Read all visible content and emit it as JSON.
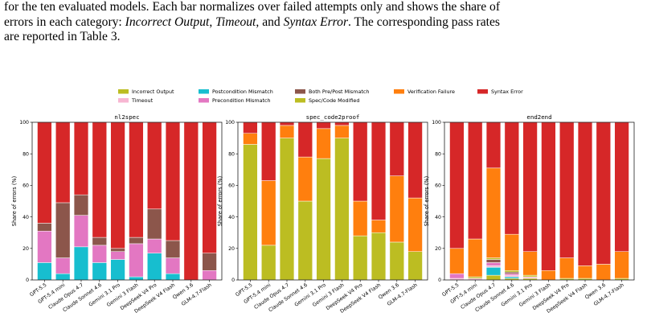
{
  "caption": {
    "line1": "for the ten evaluated models. Each bar normalizes over failed attempts only and shows the share of",
    "line2_pre": "errors in each category: ",
    "cat1": "Incorrect Output",
    "sep1": ", ",
    "cat2": "Timeout",
    "sep2": ", and ",
    "cat3": "Syntax Error",
    "line2_post": ". The corresponding pass rates",
    "line3": "are reported in Table 3."
  },
  "colors": {
    "incorrect_output": "#bcbd22",
    "timeout": "#f7b6d2",
    "postcondition_mismatch": "#17becf",
    "precondition_mismatch": "#e377c2",
    "both_mismatch": "#8c564b",
    "spec_code_modified": "#bcbd22",
    "verification_failure": "#ff7f0e",
    "syntax_error": "#d62728"
  },
  "legend": {
    "placement": "top-center",
    "entries": [
      {
        "key": "incorrect_output",
        "label": "Incorrect Output"
      },
      {
        "key": "postcondition_mismatch",
        "label": "Postcondition Mismatch"
      },
      {
        "key": "both_mismatch",
        "label": "Both Pre/Post Mismatch"
      },
      {
        "key": "verification_failure",
        "label": "Verification Failure"
      },
      {
        "key": "syntax_error",
        "label": "Syntax Error"
      },
      {
        "key": "timeout",
        "label": "Timeout"
      },
      {
        "key": "precondition_mismatch",
        "label": "Precondition Mismatch"
      },
      {
        "key": "spec_code_modified",
        "label": "Spec/Code Modified"
      }
    ]
  },
  "chart_data": [
    {
      "type": "bar",
      "stacked": true,
      "title": "nl2spec",
      "ylabel": "Share of errors (%)",
      "ylim": [
        0,
        100
      ],
      "yticks": [
        0,
        20,
        40,
        60,
        80,
        100
      ],
      "grid": false,
      "categories": [
        "GPT-5.5",
        "GPT-5.4 mini",
        "Claude Opus 4.7",
        "Claude Sonnet 4.6",
        "Gemini 3.1 Pro",
        "Gemini 3 Flash",
        "DeepSeek V4 Pro",
        "DeepSeek V4 Flash",
        "Qwen 3.6",
        "GLM-4.7-Flash"
      ],
      "series": [
        {
          "key": "postcondition_mismatch",
          "values": [
            11,
            4,
            21,
            11,
            13,
            2,
            17,
            4,
            0,
            0
          ]
        },
        {
          "key": "precondition_mismatch",
          "values": [
            20,
            10,
            20,
            11,
            5,
            21,
            9,
            10,
            0,
            6
          ]
        },
        {
          "key": "both_mismatch",
          "values": [
            5,
            35,
            13,
            5,
            2,
            4,
            19,
            11,
            0,
            11
          ]
        },
        {
          "key": "syntax_error",
          "values": [
            64,
            51,
            46,
            73,
            80,
            73,
            55,
            75,
            100,
            83
          ]
        }
      ]
    },
    {
      "type": "bar",
      "stacked": true,
      "title": "spec_code2proof",
      "ylabel": "Share of errors (%)",
      "ylim": [
        0,
        100
      ],
      "yticks": [
        0,
        20,
        40,
        60,
        80,
        100
      ],
      "grid": false,
      "categories": [
        "GPT-5.5",
        "GPT-5.4 mini",
        "Claude Opus 4.7",
        "Claude Sonnet 4.6",
        "Gemini 3.1 Pro",
        "Gemini 3 Flash",
        "DeepSeek V4 Pro",
        "DeepSeek V4 Flash",
        "Qwen 3.6",
        "GLM-4.7-Flash"
      ],
      "series": [
        {
          "key": "spec_code_modified",
          "values": [
            86,
            22,
            90,
            50,
            77,
            90,
            28,
            30,
            24,
            18
          ]
        },
        {
          "key": "verification_failure",
          "values": [
            7,
            41,
            8,
            28,
            19,
            8,
            22,
            8,
            42,
            34
          ]
        },
        {
          "key": "syntax_error",
          "values": [
            7,
            37,
            2,
            22,
            4,
            2,
            50,
            62,
            34,
            48
          ]
        }
      ]
    },
    {
      "type": "bar",
      "stacked": true,
      "title": "end2end",
      "ylabel": "Share of errors (%)",
      "ylim": [
        0,
        100
      ],
      "yticks": [
        0,
        20,
        40,
        60,
        80,
        100
      ],
      "grid": false,
      "categories": [
        "GPT-5.5",
        "GPT-5.4 mini",
        "Claude Opus 4.7",
        "Claude Sonnet 4.6",
        "Gemini 3.1 Pro",
        "Gemini 3 Flash",
        "DeepSeek V4 Pro",
        "DeepSeek V4 Flash",
        "Qwen 3.6",
        "GLM-4.7-Flash"
      ],
      "series": [
        {
          "key": "incorrect_output",
          "values": [
            0,
            0,
            3,
            1,
            1,
            0,
            0,
            0,
            0,
            0
          ]
        },
        {
          "key": "postcondition_mismatch",
          "values": [
            0,
            0,
            5,
            1,
            0,
            0,
            0,
            0,
            0,
            0
          ]
        },
        {
          "key": "timeout",
          "values": [
            1,
            1,
            1,
            1,
            1,
            0,
            0,
            0,
            0,
            0
          ]
        },
        {
          "key": "precondition_mismatch",
          "values": [
            3,
            0,
            2,
            1,
            0,
            0,
            0,
            0,
            0,
            0
          ]
        },
        {
          "key": "both_mismatch",
          "values": [
            0,
            0,
            2,
            1,
            0,
            0,
            0,
            0,
            0,
            0
          ]
        },
        {
          "key": "spec_code_modified",
          "values": [
            0,
            1,
            1,
            1,
            1,
            0,
            1,
            1,
            0,
            1
          ]
        },
        {
          "key": "verification_failure",
          "values": [
            16,
            24,
            57,
            23,
            15,
            6,
            13,
            8,
            10,
            17
          ]
        },
        {
          "key": "syntax_error",
          "values": [
            80,
            74,
            29,
            71,
            82,
            94,
            86,
            91,
            90,
            82
          ]
        }
      ]
    }
  ]
}
